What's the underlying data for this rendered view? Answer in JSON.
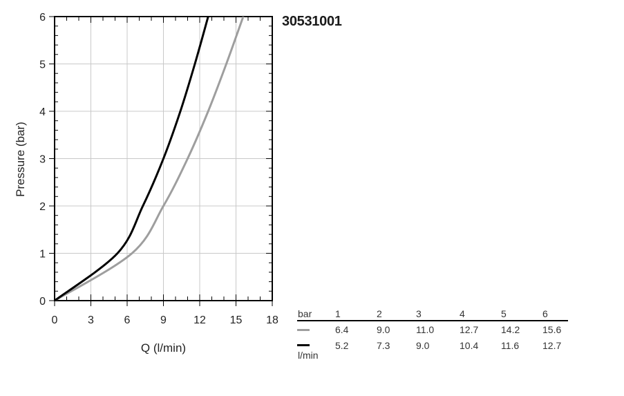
{
  "product_code": "30531001",
  "colors": {
    "series_gray": "#9e9e9e",
    "series_black": "#000000",
    "grid": "#c8c8c8"
  },
  "chart_data": {
    "type": "line",
    "ylabel": "Pressure (bar)",
    "xlabel": "Q (l/min)",
    "xlim": [
      0,
      18
    ],
    "ylim": [
      0,
      6
    ],
    "x_ticks": [
      0,
      3,
      6,
      9,
      12,
      15,
      18
    ],
    "y_ticks": [
      0,
      1,
      2,
      3,
      4,
      5,
      6
    ],
    "grid": true,
    "series": [
      {
        "color": "gray",
        "x": [
          0,
          6.4,
          9.0,
          11.0,
          12.7,
          14.2,
          15.6
        ],
        "y": [
          0,
          1,
          2,
          3,
          4,
          5,
          6
        ]
      },
      {
        "color": "black",
        "x": [
          0,
          5.2,
          7.3,
          9.0,
          10.4,
          11.6,
          12.7
        ],
        "y": [
          0,
          1,
          2,
          3,
          4,
          5,
          6
        ]
      }
    ]
  },
  "table": {
    "header_unit": "bar",
    "row_unit": "l/min",
    "pressures": [
      "1",
      "2",
      "3",
      "4",
      "5",
      "6"
    ],
    "rows": [
      {
        "color": "gray",
        "values": [
          "6.4",
          "9.0",
          "11.0",
          "12.7",
          "14.2",
          "15.6"
        ]
      },
      {
        "color": "black",
        "values": [
          "5.2",
          "7.3",
          "9.0",
          "10.4",
          "11.6",
          "12.7"
        ]
      }
    ]
  }
}
